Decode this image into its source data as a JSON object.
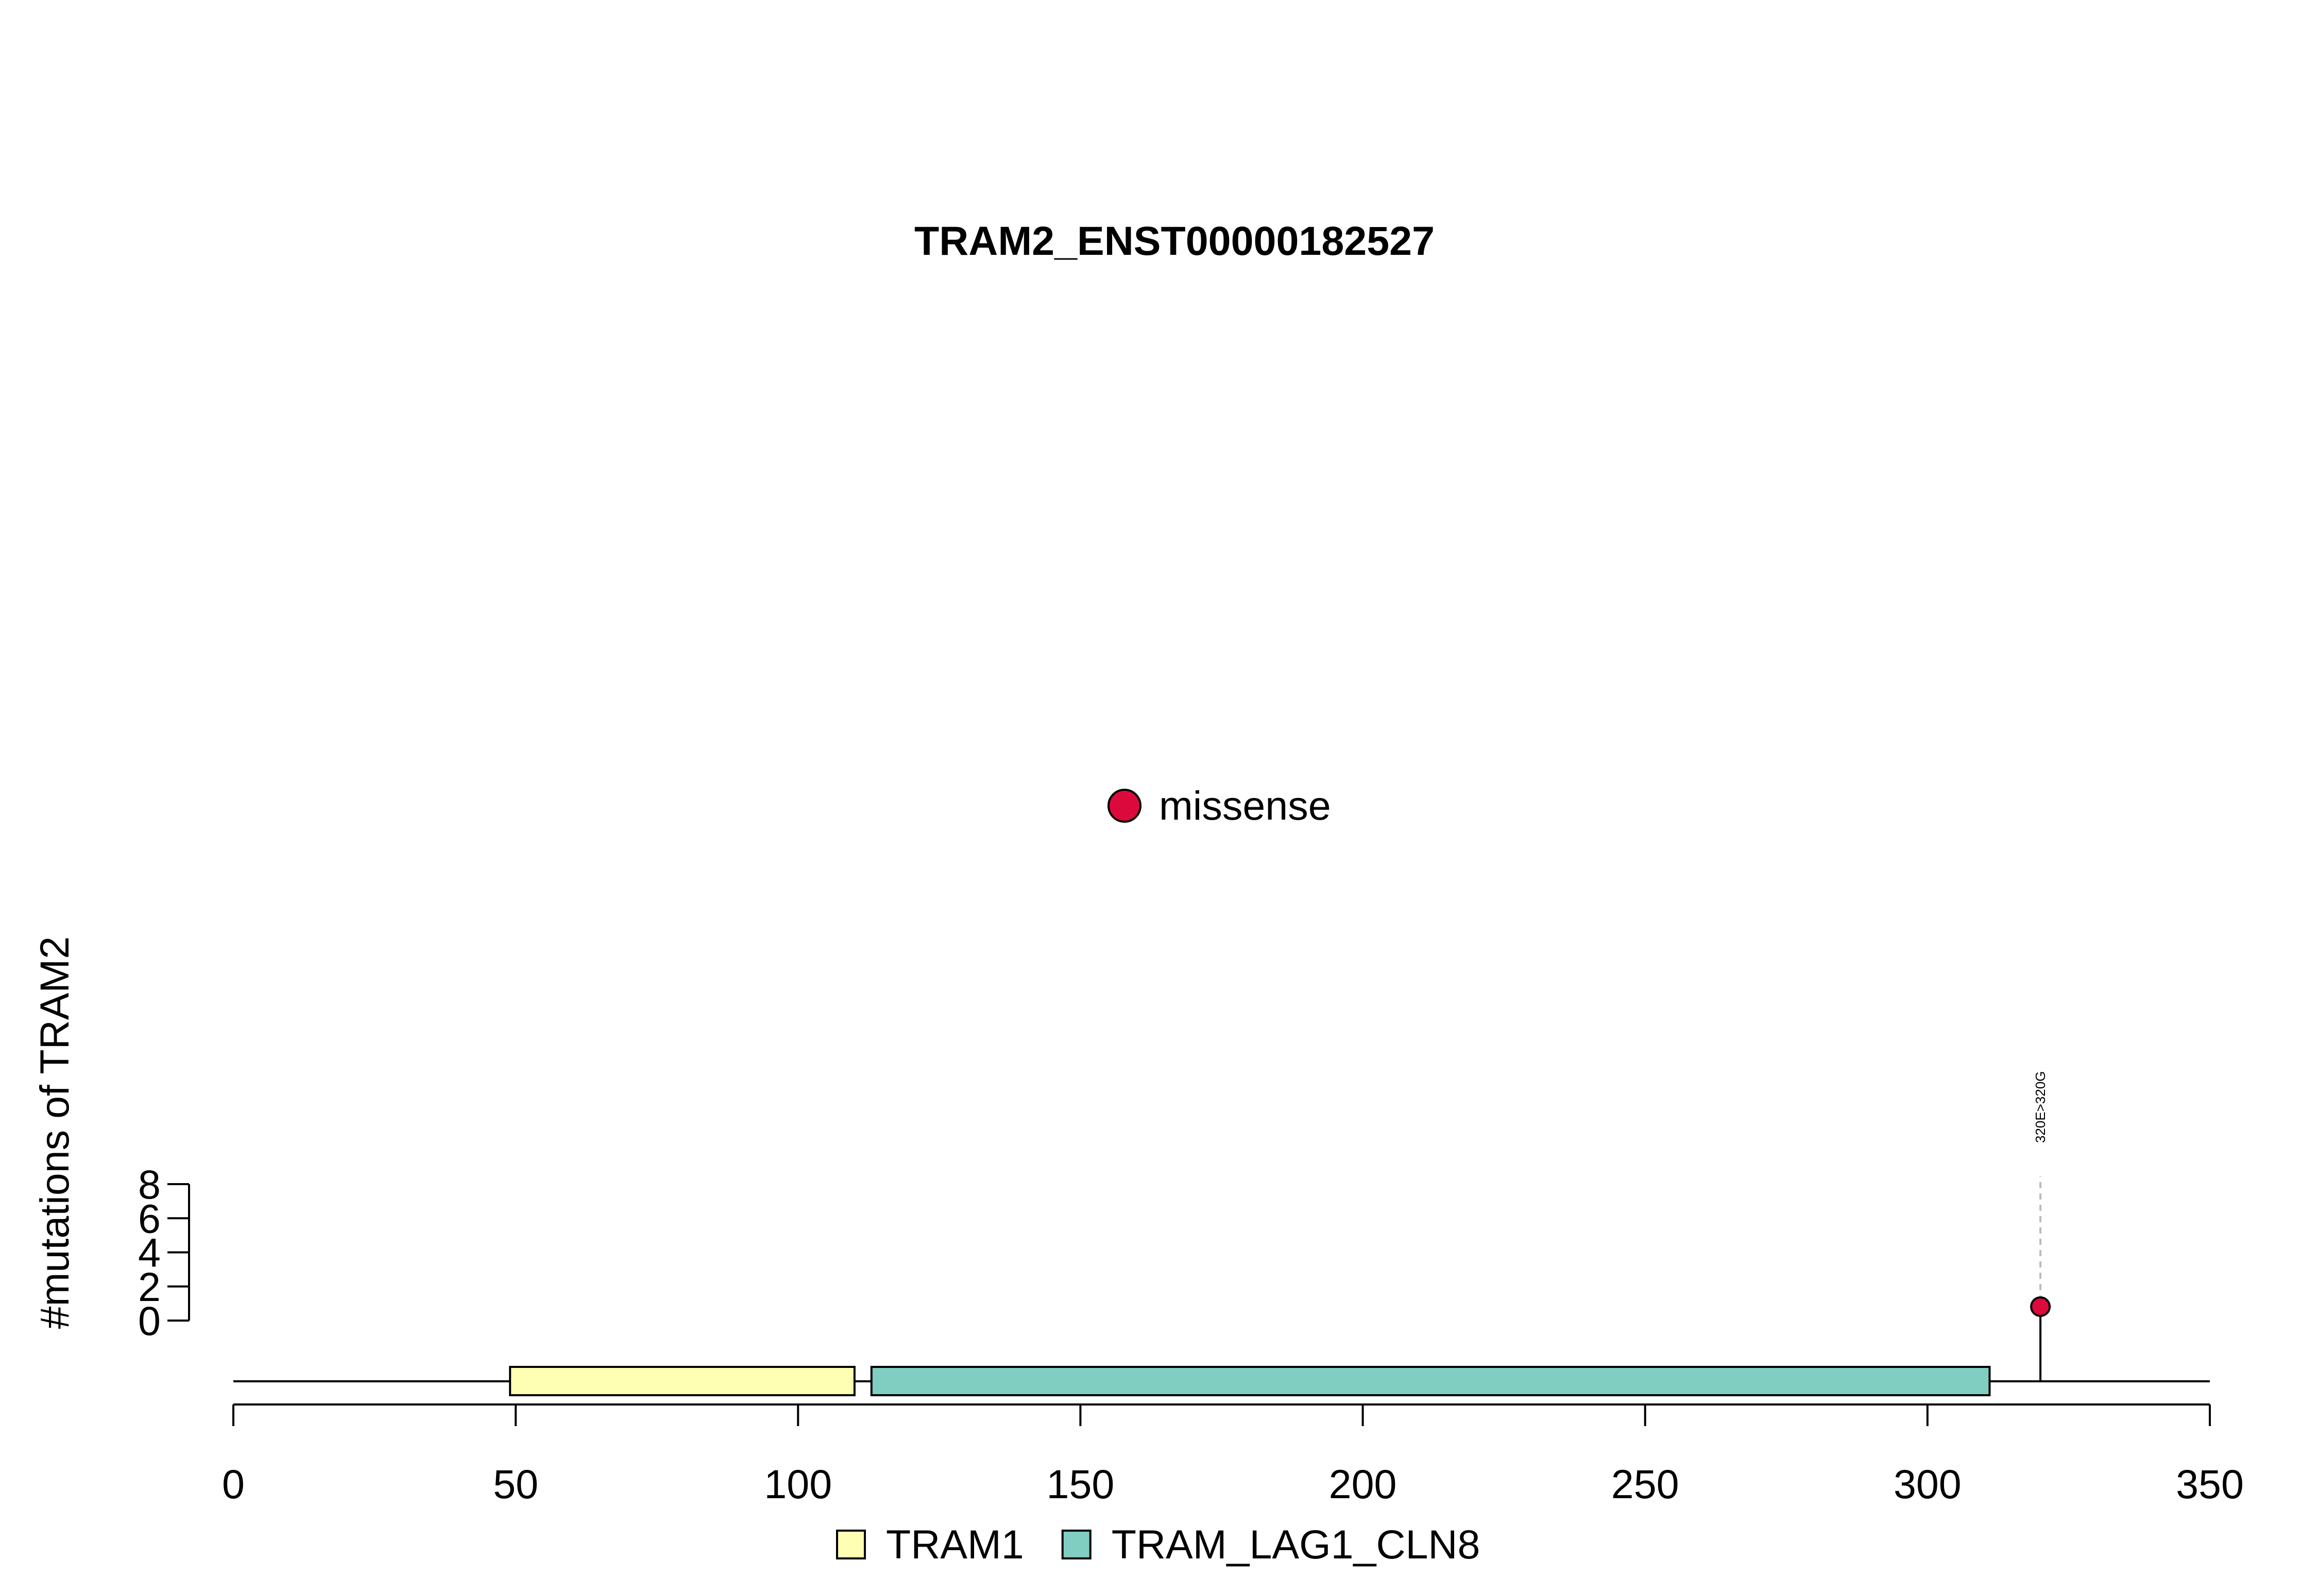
{
  "chart_data": {
    "type": "lollipop",
    "title": "TRAM2_ENST00000182527",
    "ylabel": "#mutations of TRAM2",
    "xlim": [
      0,
      350
    ],
    "x_ticks": [
      "0",
      "50",
      "100",
      "150",
      "200",
      "250",
      "300",
      "350"
    ],
    "y_ticks": [
      "0",
      "2",
      "4",
      "6",
      "8"
    ],
    "ylim": [
      0,
      8
    ],
    "protein_length": 350,
    "domains": [
      {
        "name": "TRAM1",
        "start": 49,
        "end": 110,
        "color": "#FFFFB3"
      },
      {
        "name": "TRAM_LAG1_CLN8",
        "start": 113,
        "end": 311,
        "color": "#80CDC1"
      }
    ],
    "mutations": [
      {
        "position": 320,
        "count": 1,
        "label": "320E>320G",
        "type": "missense",
        "color": "#DC0A3C"
      }
    ],
    "mutation_legend": [
      {
        "type": "missense",
        "color": "#DC0A3C"
      }
    ]
  }
}
